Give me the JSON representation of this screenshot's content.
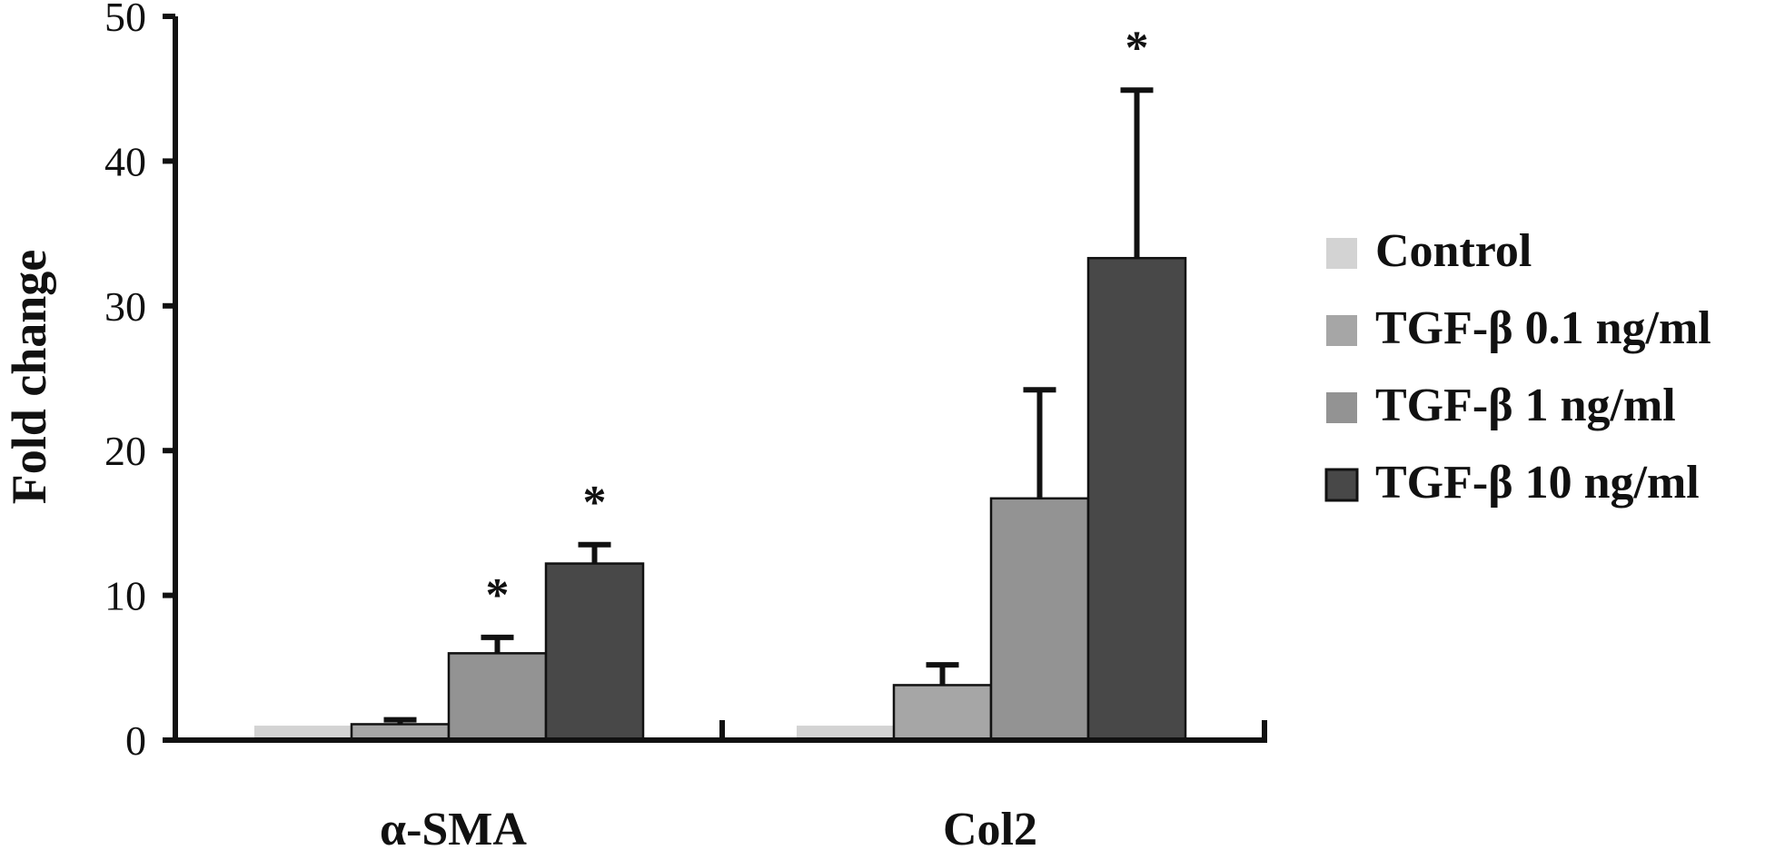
{
  "chart_data": {
    "type": "bar",
    "ylabel": "Fold change",
    "xlabel": "",
    "ylim": [
      0,
      50
    ],
    "yticks": [
      "0",
      "10",
      "20",
      "30",
      "40",
      "50"
    ],
    "categories": [
      "α-SMA",
      "Col2"
    ],
    "series": [
      {
        "name": "Control",
        "color": "#d3d3d3",
        "values": [
          1.0,
          1.0
        ],
        "errors": [
          0,
          0
        ],
        "significant": [
          false,
          false
        ]
      },
      {
        "name": "TGF-β 0.1 ng/ml",
        "color": "#a6a6a6",
        "values": [
          1.1,
          3.8
        ],
        "errors": [
          0.3,
          1.4
        ],
        "significant": [
          false,
          false
        ]
      },
      {
        "name": "TGF-β 1 ng/ml",
        "color": "#939393",
        "values": [
          6.0,
          16.7
        ],
        "errors": [
          1.1,
          7.5
        ],
        "significant": [
          true,
          false
        ]
      },
      {
        "name": "TGF-β 10 ng/ml",
        "color": "#484848",
        "values": [
          12.2,
          33.3
        ],
        "errors": [
          1.3,
          11.6
        ],
        "significant": [
          true,
          true
        ]
      }
    ],
    "significance_marker": "*",
    "grid": false,
    "legend_position": "right"
  }
}
